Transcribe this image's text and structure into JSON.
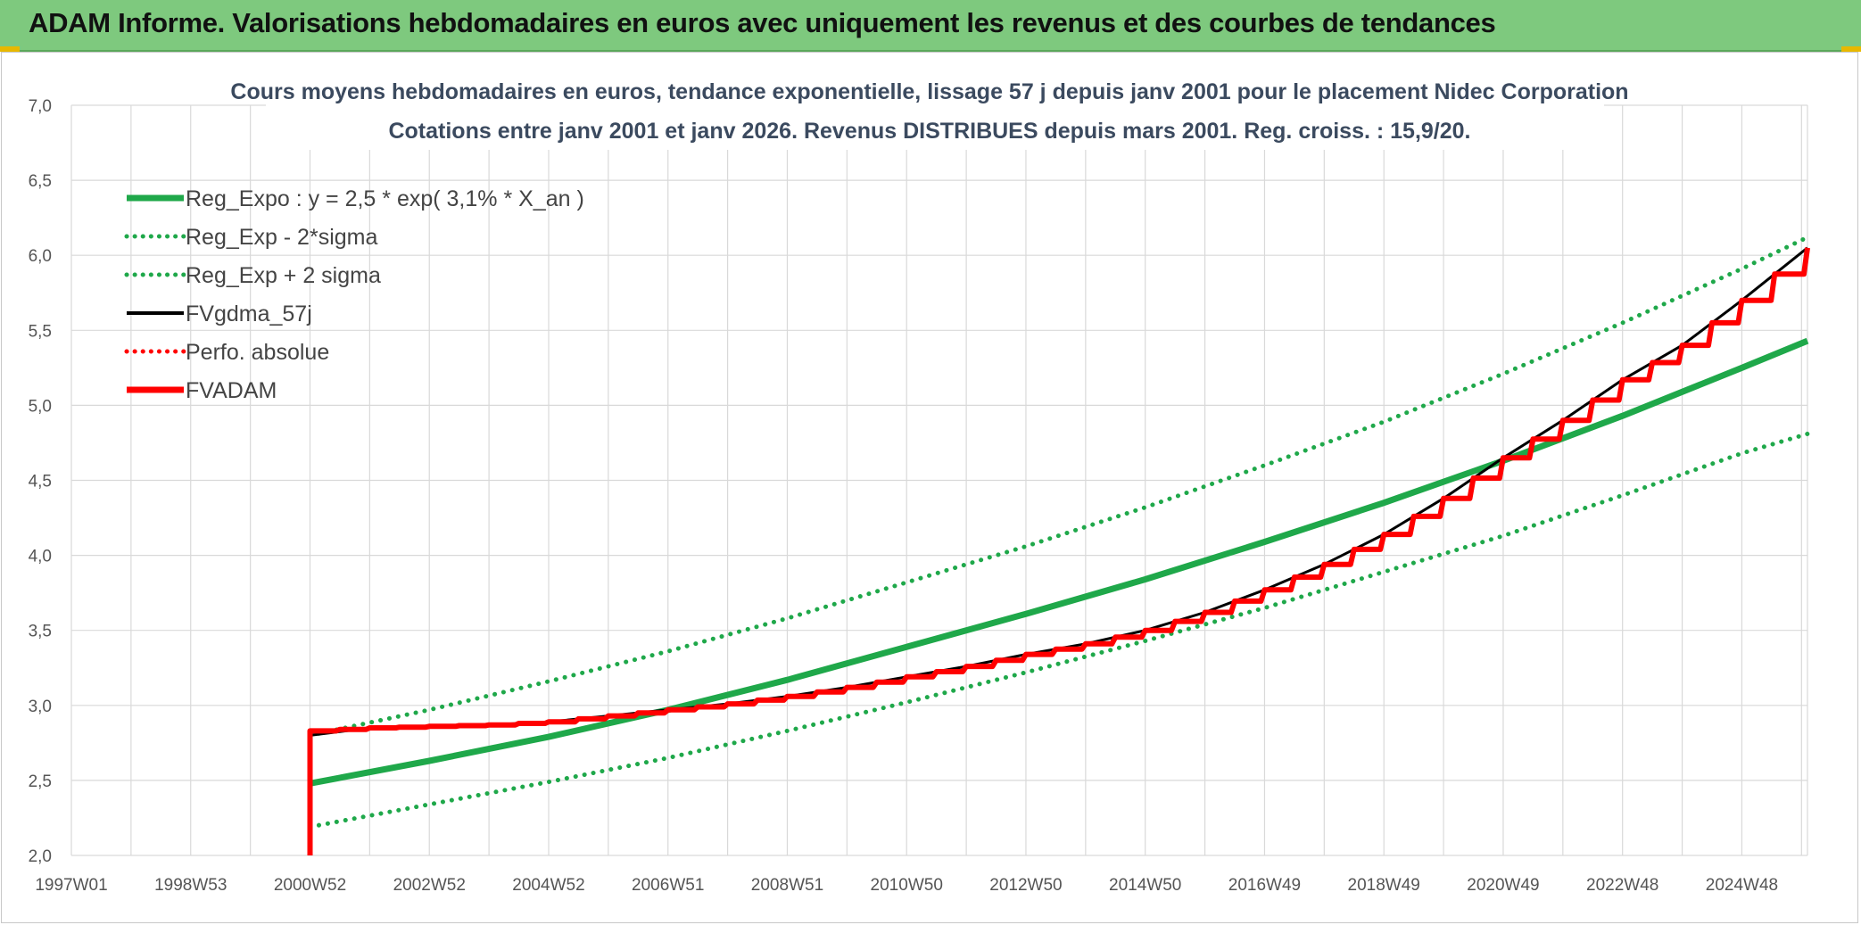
{
  "banner": {
    "title": "ADAM Informe. Valorisations hebdomadaires en euros avec uniquement les revenus et des courbes de tendances"
  },
  "colors": {
    "banner_bg": "#7ec97e",
    "reg_expo": "#1fa84a",
    "sigma_lines": "#1fa84a",
    "fvgdma": "#000000",
    "perfo": "#ff0000",
    "fvadam": "#ff0000"
  },
  "chart_data": {
    "type": "line",
    "title": [
      "Cours moyens hebdomadaires en euros, tendance exponentielle, lissage 57 j depuis janv 2001 pour le placement Nidec Corporation",
      "Cotations entre janv 2001 et janv 2026. Revenus DISTRIBUES depuis mars 2001. Reg. croiss. : 15,9/20."
    ],
    "ylim": [
      2.0,
      7.0
    ],
    "yticks": [
      "2,0",
      "2,5",
      "3,0",
      "3,5",
      "4,0",
      "4,5",
      "5,0",
      "5,5",
      "6,0",
      "6,5",
      "7,0"
    ],
    "xlim_years": [
      1997.0,
      2026.1
    ],
    "xticks": [
      {
        "label": "1997W01",
        "year": 1997.0
      },
      {
        "label": "1998W53",
        "year": 1999.0
      },
      {
        "label": "2000W52",
        "year": 2001.0
      },
      {
        "label": "2002W52",
        "year": 2003.0
      },
      {
        "label": "2004W52",
        "year": 2005.0
      },
      {
        "label": "2006W51",
        "year": 2007.0
      },
      {
        "label": "2008W51",
        "year": 2009.0
      },
      {
        "label": "2010W50",
        "year": 2011.0
      },
      {
        "label": "2012W50",
        "year": 2013.0
      },
      {
        "label": "2014W50",
        "year": 2015.0
      },
      {
        "label": "2016W49",
        "year": 2017.0
      },
      {
        "label": "2018W49",
        "year": 2019.0
      },
      {
        "label": "2020W49",
        "year": 2021.0
      },
      {
        "label": "2022W48",
        "year": 2023.0
      },
      {
        "label": "2024W48",
        "year": 2025.0
      }
    ],
    "legend": [
      {
        "key": "reg_expo",
        "label": "Reg_Expo : y = 2,5 * exp( 3,1% *  X_an )",
        "style": "solid-thick",
        "color": "#1fa84a"
      },
      {
        "key": "reg_minus",
        "label": "Reg_Exp - 2*sigma",
        "style": "dotted",
        "color": "#1fa84a"
      },
      {
        "key": "reg_plus",
        "label": "Reg_Exp + 2 sigma",
        "style": "dotted",
        "color": "#1fa84a"
      },
      {
        "key": "fvgdma",
        "label": "FVgdma_57j",
        "style": "solid",
        "color": "#000000"
      },
      {
        "key": "perfo",
        "label": "Perfo. absolue",
        "style": "dotted",
        "color": "#ff0000"
      },
      {
        "key": "fvadam",
        "label": "FVADAM",
        "style": "solid-thick",
        "color": "#ff0000"
      }
    ],
    "series": [
      {
        "name": "Reg_Expo",
        "x_years": [
          2001.0,
          2003.0,
          2005.0,
          2007.0,
          2009.0,
          2011.0,
          2013.0,
          2015.0,
          2017.0,
          2019.0,
          2021.0,
          2023.0,
          2025.0,
          2026.1
        ],
        "values": [
          2.48,
          2.63,
          2.79,
          2.97,
          3.17,
          3.39,
          3.61,
          3.84,
          4.09,
          4.35,
          4.63,
          4.93,
          5.25,
          5.43
        ]
      },
      {
        "name": "Reg_Exp - 2*sigma",
        "x_years": [
          2001.0,
          2003.0,
          2005.0,
          2007.0,
          2009.0,
          2011.0,
          2013.0,
          2015.0,
          2017.0,
          2019.0,
          2021.0,
          2023.0,
          2025.0,
          2026.1
        ],
        "values": [
          2.19,
          2.34,
          2.49,
          2.65,
          2.83,
          3.02,
          3.22,
          3.43,
          3.65,
          3.89,
          4.13,
          4.4,
          4.68,
          4.81
        ]
      },
      {
        "name": "Reg_Exp + 2 sigma",
        "x_years": [
          2001.0,
          2003.0,
          2005.0,
          2007.0,
          2009.0,
          2011.0,
          2013.0,
          2015.0,
          2017.0,
          2019.0,
          2021.0,
          2023.0,
          2025.0,
          2026.1
        ],
        "values": [
          2.8,
          2.97,
          3.16,
          3.36,
          3.58,
          3.82,
          4.06,
          4.32,
          4.6,
          4.89,
          5.21,
          5.55,
          5.91,
          6.12
        ]
      },
      {
        "name": "FVADAM",
        "x_years": [
          2001.0,
          2001.0,
          2002.0,
          2003.0,
          2004.0,
          2005.0,
          2006.0,
          2007.0,
          2008.0,
          2009.0,
          2010.0,
          2011.0,
          2012.0,
          2013.0,
          2014.0,
          2015.0,
          2016.0,
          2017.0,
          2018.0,
          2019.0,
          2020.0,
          2021.0,
          2022.0,
          2023.0,
          2024.0,
          2025.0,
          2026.1
        ],
        "values": [
          2.0,
          2.83,
          2.85,
          2.86,
          2.87,
          2.89,
          2.93,
          2.97,
          3.01,
          3.06,
          3.12,
          3.19,
          3.26,
          3.34,
          3.41,
          3.5,
          3.62,
          3.77,
          3.94,
          4.14,
          4.38,
          4.65,
          4.9,
          5.17,
          5.4,
          5.7,
          6.05
        ]
      },
      {
        "name": "FVgdma_57j",
        "x_years": [
          2001.0,
          2002.0,
          2003.0,
          2004.0,
          2005.0,
          2006.0,
          2007.0,
          2008.0,
          2009.0,
          2010.0,
          2011.0,
          2012.0,
          2013.0,
          2014.0,
          2015.0,
          2016.0,
          2017.0,
          2018.0,
          2019.0,
          2020.0,
          2021.0,
          2022.0,
          2023.0,
          2024.0,
          2025.0,
          2026.1
        ],
        "values": [
          2.8,
          2.85,
          2.86,
          2.87,
          2.89,
          2.93,
          2.97,
          3.01,
          3.06,
          3.12,
          3.19,
          3.26,
          3.34,
          3.41,
          3.5,
          3.62,
          3.77,
          3.94,
          4.14,
          4.38,
          4.65,
          4.9,
          5.17,
          5.4,
          5.7,
          6.05
        ]
      }
    ]
  }
}
